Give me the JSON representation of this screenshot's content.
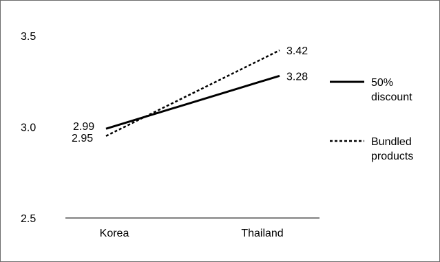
{
  "chart_data": {
    "type": "line",
    "title": "",
    "xlabel": "",
    "ylabel": "",
    "categories": [
      "Korea",
      "Thailand"
    ],
    "ylim": [
      2.5,
      3.5
    ],
    "yticks": [
      "3.5",
      "3.0",
      "2.5"
    ],
    "grid": false,
    "legend_position": "right",
    "series": [
      {
        "name_lines": [
          "50%",
          "discount"
        ],
        "values": [
          2.99,
          3.28
        ],
        "value_labels": [
          "2.99",
          "3.28"
        ],
        "line_style": "solid",
        "color": "#000000"
      },
      {
        "name_lines": [
          "Bundled",
          "products"
        ],
        "values": [
          2.95,
          3.42
        ],
        "value_labels": [
          "2.95",
          "3.42"
        ],
        "line_style": "dotted",
        "color": "#000000"
      }
    ]
  }
}
